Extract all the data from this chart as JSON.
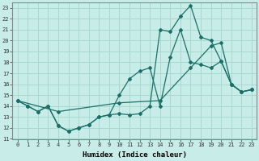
{
  "background_color": "#c8ece8",
  "grid_color": "#a8d8d0",
  "line_color": "#1a7068",
  "xlim": [
    -0.5,
    23.5
  ],
  "ylim": [
    11,
    23.5
  ],
  "yticks": [
    11,
    12,
    13,
    14,
    15,
    16,
    17,
    18,
    19,
    20,
    21,
    22,
    23
  ],
  "xticks": [
    0,
    1,
    2,
    3,
    4,
    5,
    6,
    7,
    8,
    9,
    10,
    11,
    12,
    13,
    14,
    15,
    16,
    17,
    18,
    19,
    20,
    21,
    22,
    23
  ],
  "xlabel": "Humidex (Indice chaleur)",
  "line1_x": [
    0,
    1,
    2,
    3,
    4,
    5,
    6,
    7,
    8,
    9,
    10,
    11,
    12,
    13,
    14,
    15,
    16,
    17,
    18,
    19,
    20,
    21,
    22,
    23
  ],
  "line1_y": [
    14.5,
    14.0,
    13.5,
    14.0,
    12.2,
    11.7,
    12.0,
    12.3,
    13.0,
    13.2,
    13.3,
    13.2,
    13.3,
    14.0,
    21.0,
    20.8,
    22.2,
    23.2,
    20.3,
    20.0,
    18.1,
    16.0,
    15.3,
    15.5
  ],
  "line2_x": [
    0,
    1,
    2,
    3,
    4,
    5,
    6,
    7,
    8,
    9,
    10,
    11,
    12,
    13,
    14,
    15,
    16,
    17,
    18,
    19,
    20,
    21,
    22,
    23
  ],
  "line2_y": [
    14.5,
    14.0,
    13.5,
    14.0,
    12.2,
    11.7,
    12.0,
    12.3,
    13.0,
    13.2,
    15.0,
    16.5,
    17.2,
    17.5,
    14.0,
    18.5,
    21.0,
    18.0,
    17.8,
    17.5,
    18.1,
    16.0,
    15.3,
    15.5
  ],
  "line3_x": [
    0,
    4,
    10,
    14,
    17,
    19,
    20,
    21,
    22,
    23
  ],
  "line3_y": [
    14.5,
    13.5,
    14.3,
    14.5,
    17.5,
    19.5,
    19.8,
    16.0,
    15.3,
    15.5
  ]
}
